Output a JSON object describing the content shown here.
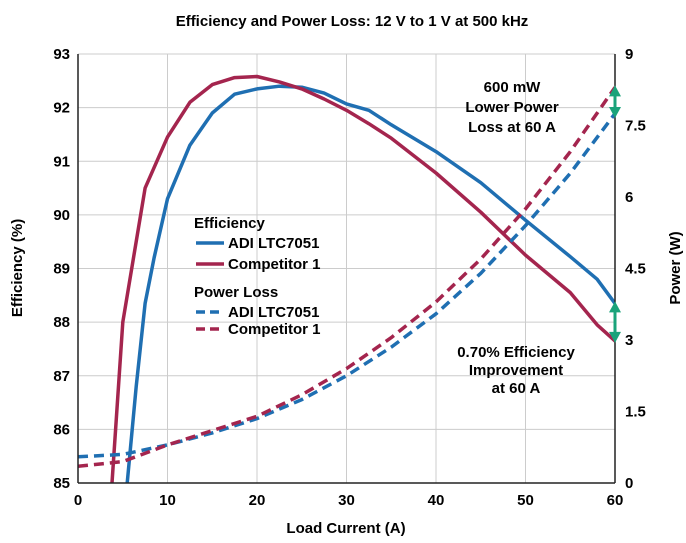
{
  "chart_data": {
    "type": "line",
    "title": "Efficiency and Power Loss: 12 V to 1 V at 500 kHz",
    "xlabel": "Load Current (A)",
    "ylabel": "Efficiency (%)",
    "y2label": "Power (W)",
    "xlim": [
      0,
      60
    ],
    "ylim": [
      85,
      93
    ],
    "y2lim": [
      0,
      9
    ],
    "xticks": [
      "0",
      "10",
      "20",
      "30",
      "40",
      "50",
      "60"
    ],
    "xtick_values": [
      0,
      10,
      20,
      30,
      40,
      50,
      60
    ],
    "yticks": [
      "85",
      "86",
      "87",
      "88",
      "89",
      "90",
      "91",
      "92",
      "93"
    ],
    "ytick_values": [
      85,
      86,
      87,
      88,
      89,
      90,
      91,
      92,
      93
    ],
    "y2ticks": [
      "0",
      "1.5",
      "3",
      "4.5",
      "6",
      "7.5",
      "9"
    ],
    "y2tick_values": [
      0,
      1.5,
      3,
      4.5,
      6,
      7.5,
      9
    ],
    "grid": true,
    "series": [
      {
        "name": "ADI LTC7051",
        "group": "Efficiency",
        "axis": "left",
        "style": "solid",
        "color": "#1f6fb2",
        "x": [
          5.5,
          6.5,
          7.5,
          8.5,
          10,
          12.5,
          15,
          17.5,
          20,
          22.5,
          25,
          27.5,
          30,
          32.5,
          35,
          40,
          45,
          50,
          55,
          58,
          60
        ],
        "y": [
          85,
          86.8,
          88.35,
          89.2,
          90.3,
          91.3,
          91.9,
          92.25,
          92.35,
          92.4,
          92.38,
          92.27,
          92.07,
          91.95,
          91.68,
          91.18,
          90.6,
          89.9,
          89.22,
          88.8,
          88.35
        ]
      },
      {
        "name": "Competitor 1",
        "group": "Efficiency",
        "axis": "left",
        "style": "solid",
        "color": "#a4254e",
        "x": [
          3.8,
          5,
          7.5,
          10,
          12.5,
          15,
          17.5,
          20,
          22.5,
          25,
          27.5,
          30,
          32.5,
          35,
          40,
          45,
          50,
          55,
          58,
          60
        ],
        "y": [
          85,
          88,
          90.5,
          91.45,
          92.1,
          92.43,
          92.56,
          92.58,
          92.48,
          92.35,
          92.16,
          91.95,
          91.7,
          91.43,
          90.78,
          90.05,
          89.25,
          88.55,
          87.95,
          87.65
        ]
      },
      {
        "name": "ADI LTC7051",
        "group": "Power Loss",
        "axis": "right",
        "style": "dashed",
        "color": "#1f6fb2",
        "x": [
          0,
          5,
          10,
          15,
          20,
          25,
          30,
          35,
          40,
          45,
          50,
          55,
          60
        ],
        "y": [
          0.55,
          0.6,
          0.8,
          1.05,
          1.35,
          1.75,
          2.25,
          2.85,
          3.55,
          4.4,
          5.4,
          6.5,
          7.75
        ]
      },
      {
        "name": "Competitor 1",
        "group": "Power Loss",
        "axis": "right",
        "style": "dashed",
        "color": "#a4254e",
        "x": [
          0,
          5,
          10,
          15,
          20,
          25,
          30,
          35,
          40,
          45,
          50,
          55,
          60
        ],
        "y": [
          0.35,
          0.45,
          0.8,
          1.1,
          1.4,
          1.85,
          2.4,
          3.05,
          3.8,
          4.7,
          5.75,
          6.95,
          8.3
        ]
      }
    ],
    "legend": {
      "placement": "center-left",
      "efficiency_heading": "Efficiency",
      "power_heading": "Power Loss",
      "eff_adi": "ADI LTC7051",
      "eff_comp": "Competitor 1",
      "pl_adi": "ADI LTC7051",
      "pl_comp": "Competitor 1"
    },
    "annotations": {
      "power": [
        "600 mW",
        "Lower Power",
        "Loss at 60 A"
      ],
      "efficiency": [
        "0.70% Efficiency",
        "Improvement",
        "at 60 A"
      ],
      "arrow_color": "#1aa37a",
      "power_arrow": {
        "x": 60,
        "y_from": 7.7,
        "y_to": 8.3,
        "axis": "right"
      },
      "efficiency_arrow": {
        "x": 60,
        "y_from": 87.65,
        "y_to": 88.35,
        "axis": "left"
      }
    },
    "colors": {
      "adi": "#1f6fb2",
      "competitor": "#a4254e",
      "grid": "#cccccc",
      "axis": "#222222"
    }
  }
}
